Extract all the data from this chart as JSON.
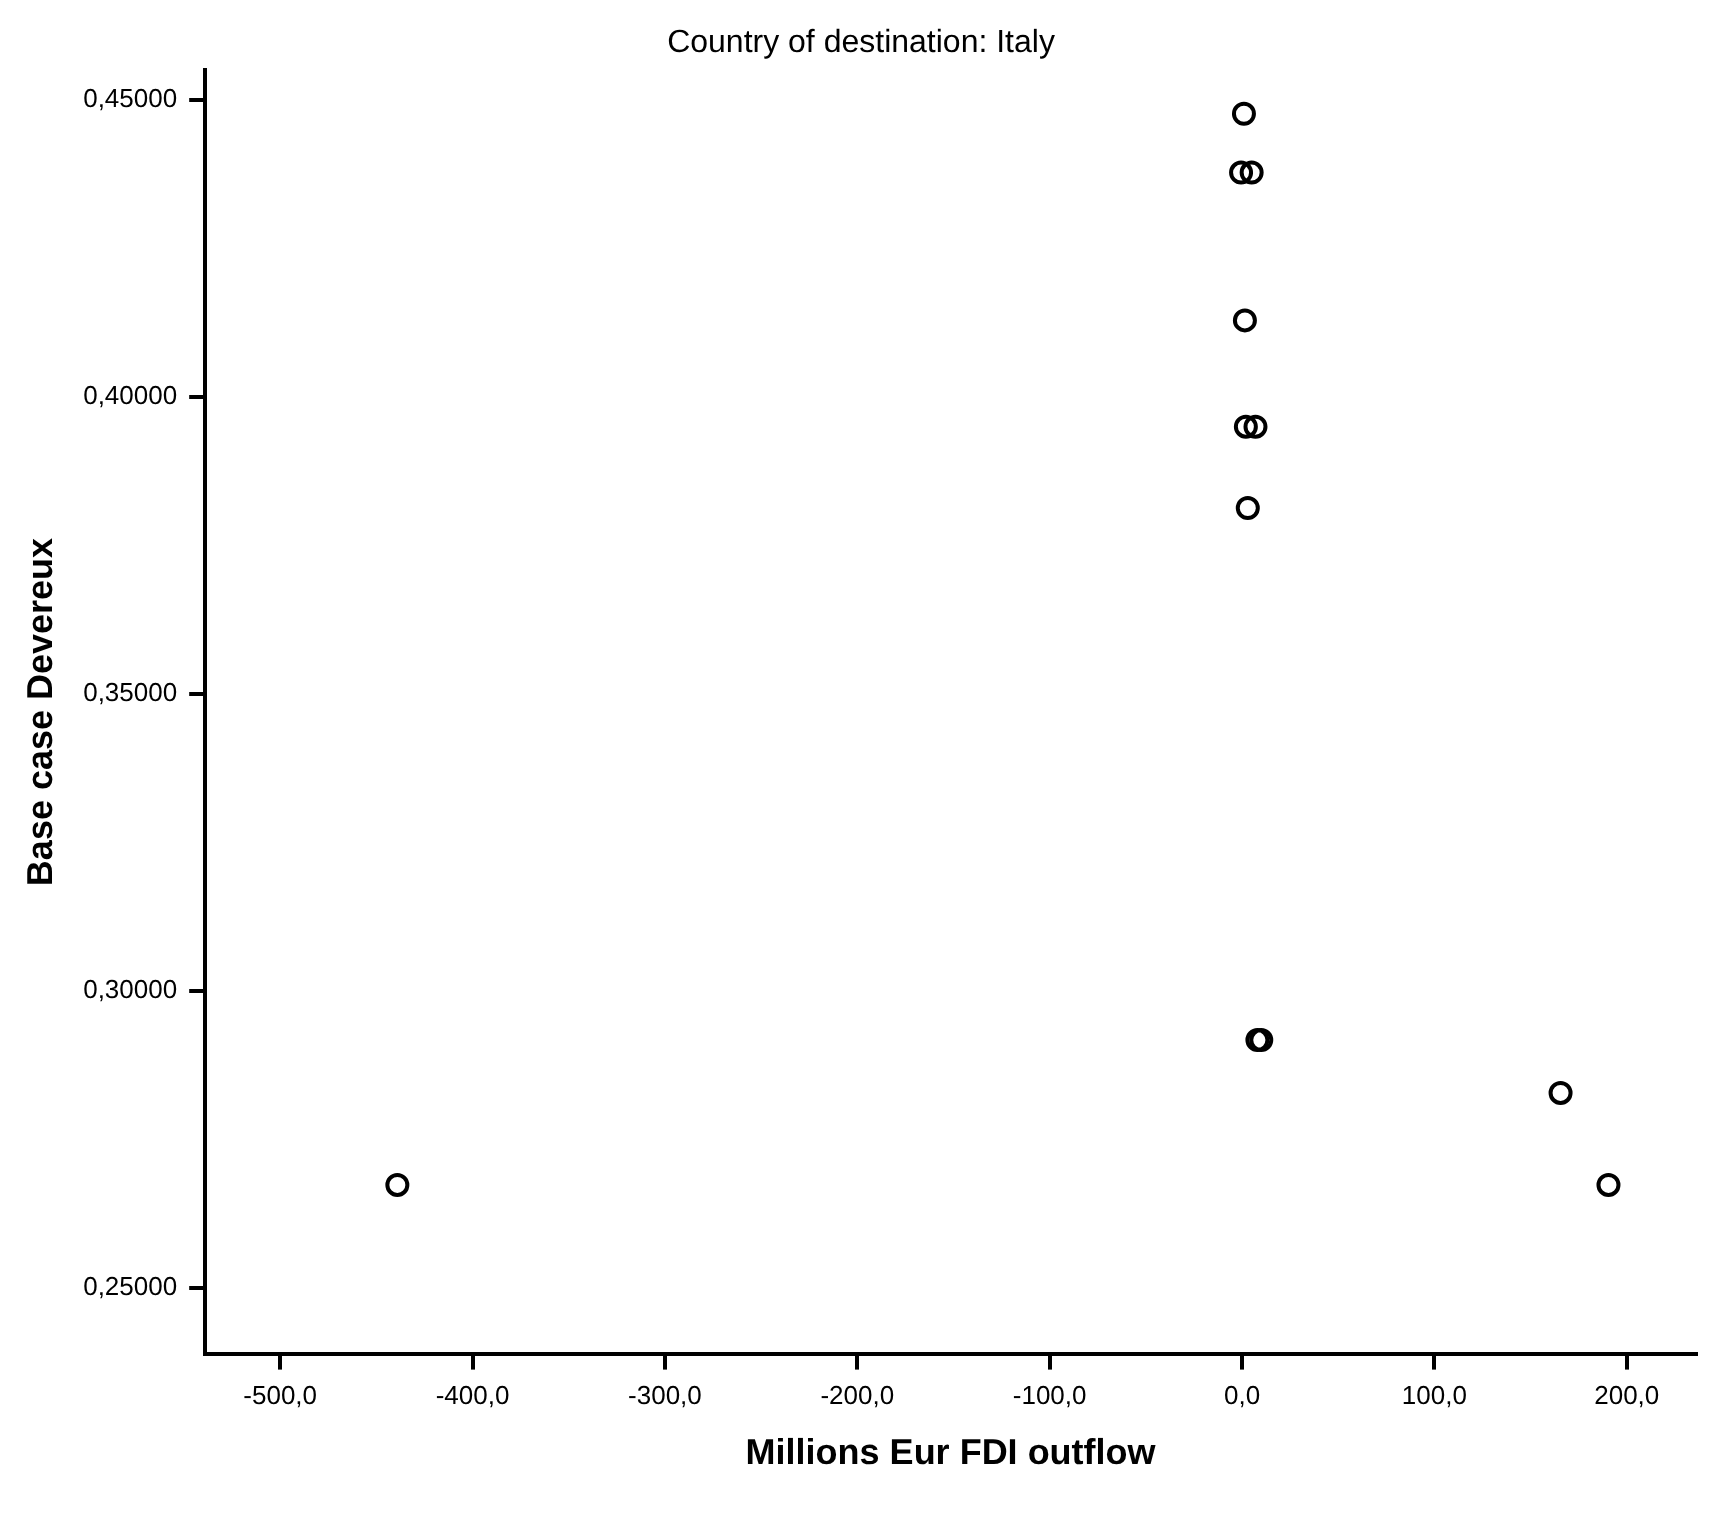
{
  "chart_data": {
    "type": "scatter",
    "title": "Country of destination: Italy",
    "xlabel": "Millions Eur FDI outflow",
    "ylabel": "Base case Devereux",
    "series": [
      {
        "color": "#000000",
        "x": [
          1,
          -0.5,
          5,
          1.5,
          2,
          7,
          3,
          8,
          10,
          165.6,
          190.5,
          -439.1
        ],
        "values": [
          0.4477,
          0.4378,
          0.4378,
          0.4129,
          0.395,
          0.395,
          0.3813,
          0.2917,
          0.2917,
          0.2828,
          0.2673,
          0.2673
        ]
      }
    ],
    "xlim": [
      -539,
      236
    ],
    "xticks": [
      {
        "value": -500,
        "label": "-500,0"
      },
      {
        "value": -400,
        "label": "-400,0"
      },
      {
        "value": -300,
        "label": "-300,0"
      },
      {
        "value": -200,
        "label": "-200,0"
      },
      {
        "value": -100,
        "label": "-100,0"
      },
      {
        "value": 0,
        "label": "0,0"
      },
      {
        "value": 100,
        "label": "100,0"
      },
      {
        "value": 200,
        "label": "200,0"
      }
    ],
    "ylim": [
      0.2389,
      0.455
    ],
    "yticks": [
      {
        "value": 0.25,
        "label": "0,25000"
      },
      {
        "value": 0.3,
        "label": "0,30000"
      },
      {
        "value": 0.35,
        "label": "0,35000"
      },
      {
        "value": 0.4,
        "label": "0,40000"
      },
      {
        "value": 0.45,
        "label": "0,45000"
      }
    ],
    "grid": false,
    "legend": false,
    "marker": "circle"
  }
}
